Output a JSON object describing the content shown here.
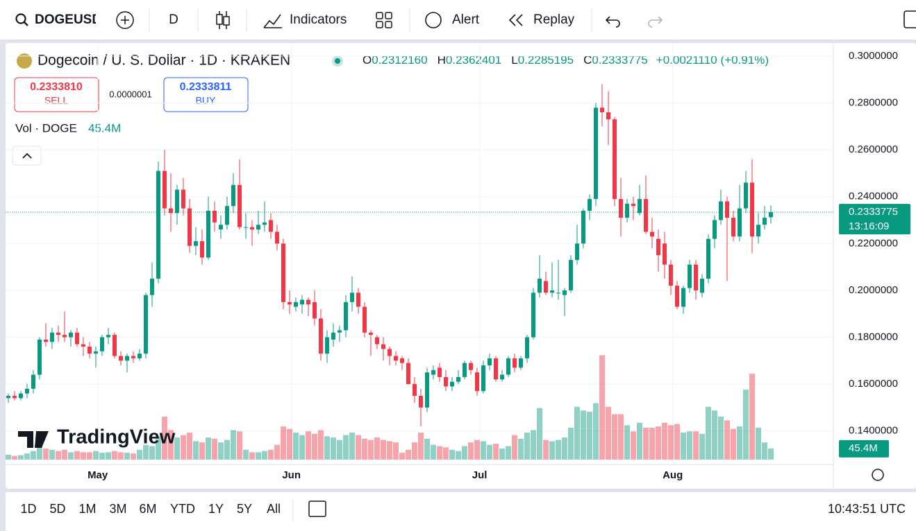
{
  "toolbar": {
    "symbol": "DOGEUSD",
    "interval": "D",
    "indicators": "Indicators",
    "alert": "Alert",
    "replay": "Replay"
  },
  "chart_data": {
    "type": "candlestick",
    "title": "Dogecoin / U. S. Dollar · 1D · KRAKEN",
    "legend": [
      {
        "key": "O",
        "value": 0.231216,
        "label": "0.2312160"
      },
      {
        "key": "H",
        "value": 0.2362401,
        "label": "0.2362401"
      },
      {
        "key": "L",
        "value": 0.2285195,
        "label": "0.2285195"
      },
      {
        "key": "C",
        "value": 0.2333775,
        "label": "0.2333775"
      }
    ],
    "change": {
      "value": 0.002111,
      "label": "+0.0021110"
    },
    "change_pct": {
      "value": 0.91,
      "label": "(+0.91%)"
    },
    "sell": {
      "value": 0.233381,
      "label": "0.2333810",
      "text": "SELL"
    },
    "spread": {
      "value": 1e-07,
      "label": "0.0000001"
    },
    "buy": {
      "value": 0.2333811,
      "label": "0.2333811",
      "text": "BUY"
    },
    "volume_legend": {
      "name": "Vol · DOGE",
      "value": 45.4,
      "label": "45.4M"
    },
    "last_price": {
      "value": 0.2333775,
      "label": "0.2333775",
      "countdown": "13:16:09"
    },
    "up_color": "#089981",
    "down_color": "#f23645",
    "ylim": [
      0.1257,
      0.3056
    ],
    "yticks": [
      {
        "value": 0.14,
        "label": "0.1400000"
      },
      {
        "value": 0.16,
        "label": "0.1600000"
      },
      {
        "value": 0.18,
        "label": "0.1800000"
      },
      {
        "value": 0.2,
        "label": "0.2000000"
      },
      {
        "value": 0.22,
        "label": "0.2200000"
      },
      {
        "value": 0.24,
        "label": "0.2400000"
      },
      {
        "value": 0.26,
        "label": "0.2600000"
      },
      {
        "value": 0.28,
        "label": "0.2800000"
      },
      {
        "value": 0.3,
        "label": "0.3000000"
      }
    ],
    "xlim": [
      -0.44,
      132
    ],
    "xticks": [
      {
        "value": 14.3,
        "label": "May"
      },
      {
        "value": 45.3,
        "label": "Jun"
      },
      {
        "value": 75.4,
        "label": "Jul"
      },
      {
        "value": 106.3,
        "label": "Aug"
      }
    ],
    "volume_lim": [
      0,
      480
    ],
    "candles": [
      [
        0.154,
        0.156,
        0.152,
        0.155
      ],
      [
        0.155,
        0.157,
        0.153,
        0.154
      ],
      [
        0.154,
        0.157,
        0.153,
        0.156
      ],
      [
        0.156,
        0.16,
        0.154,
        0.158
      ],
      [
        0.158,
        0.166,
        0.156,
        0.164
      ],
      [
        0.164,
        0.18,
        0.162,
        0.179
      ],
      [
        0.179,
        0.186,
        0.176,
        0.178
      ],
      [
        0.178,
        0.184,
        0.175,
        0.182
      ],
      [
        0.182,
        0.185,
        0.178,
        0.181
      ],
      [
        0.181,
        0.191,
        0.178,
        0.18
      ],
      [
        0.18,
        0.183,
        0.176,
        0.182
      ],
      [
        0.182,
        0.184,
        0.176,
        0.177
      ],
      [
        0.177,
        0.18,
        0.172,
        0.176
      ],
      [
        0.176,
        0.178,
        0.171,
        0.173
      ],
      [
        0.173,
        0.176,
        0.167,
        0.174
      ],
      [
        0.174,
        0.181,
        0.172,
        0.18
      ],
      [
        0.18,
        0.184,
        0.177,
        0.181
      ],
      [
        0.181,
        0.182,
        0.171,
        0.172
      ],
      [
        0.172,
        0.174,
        0.168,
        0.17
      ],
      [
        0.17,
        0.173,
        0.165,
        0.172
      ],
      [
        0.172,
        0.174,
        0.169,
        0.171
      ],
      [
        0.171,
        0.175,
        0.17,
        0.173
      ],
      [
        0.173,
        0.199,
        0.171,
        0.198
      ],
      [
        0.198,
        0.212,
        0.193,
        0.205
      ],
      [
        0.205,
        0.255,
        0.203,
        0.251
      ],
      [
        0.251,
        0.26,
        0.232,
        0.235
      ],
      [
        0.235,
        0.25,
        0.225,
        0.233
      ],
      [
        0.233,
        0.245,
        0.228,
        0.243
      ],
      [
        0.243,
        0.248,
        0.232,
        0.235
      ],
      [
        0.235,
        0.239,
        0.216,
        0.219
      ],
      [
        0.219,
        0.227,
        0.215,
        0.221
      ],
      [
        0.221,
        0.226,
        0.211,
        0.214
      ],
      [
        0.214,
        0.24,
        0.213,
        0.234
      ],
      [
        0.234,
        0.238,
        0.225,
        0.229
      ],
      [
        0.226,
        0.232,
        0.222,
        0.228
      ],
      [
        0.228,
        0.24,
        0.226,
        0.236
      ],
      [
        0.236,
        0.25,
        0.233,
        0.245
      ],
      [
        0.245,
        0.256,
        0.226,
        0.227
      ],
      [
        0.227,
        0.233,
        0.222,
        0.227
      ],
      [
        0.227,
        0.23,
        0.219,
        0.226
      ],
      [
        0.226,
        0.234,
        0.224,
        0.228
      ],
      [
        0.228,
        0.238,
        0.225,
        0.229
      ],
      [
        0.23,
        0.233,
        0.222,
        0.225
      ],
      [
        0.225,
        0.228,
        0.217,
        0.22
      ],
      [
        0.22,
        0.222,
        0.192,
        0.195
      ],
      [
        0.195,
        0.2,
        0.19,
        0.194
      ],
      [
        0.193,
        0.197,
        0.191,
        0.195
      ],
      [
        0.194,
        0.198,
        0.19,
        0.196
      ],
      [
        0.196,
        0.197,
        0.189,
        0.194
      ],
      [
        0.195,
        0.2,
        0.185,
        0.188
      ],
      [
        0.188,
        0.192,
        0.17,
        0.173
      ],
      [
        0.173,
        0.183,
        0.169,
        0.18
      ],
      [
        0.179,
        0.186,
        0.176,
        0.182
      ],
      [
        0.182,
        0.185,
        0.178,
        0.183
      ],
      [
        0.183,
        0.198,
        0.18,
        0.195
      ],
      [
        0.195,
        0.206,
        0.191,
        0.199
      ],
      [
        0.199,
        0.201,
        0.19,
        0.193
      ],
      [
        0.193,
        0.195,
        0.18,
        0.182
      ],
      [
        0.182,
        0.183,
        0.172,
        0.181
      ],
      [
        0.18,
        0.181,
        0.175,
        0.177
      ],
      [
        0.177,
        0.18,
        0.17,
        0.175
      ],
      [
        0.175,
        0.176,
        0.168,
        0.172
      ],
      [
        0.172,
        0.174,
        0.168,
        0.17
      ],
      [
        0.171,
        0.172,
        0.166,
        0.169
      ],
      [
        0.169,
        0.171,
        0.16,
        0.16
      ],
      [
        0.16,
        0.163,
        0.152,
        0.155
      ],
      [
        0.155,
        0.158,
        0.142,
        0.15
      ],
      [
        0.15,
        0.167,
        0.148,
        0.165
      ],
      [
        0.164,
        0.168,
        0.162,
        0.166
      ],
      [
        0.167,
        0.169,
        0.161,
        0.163
      ],
      [
        0.163,
        0.166,
        0.157,
        0.159
      ],
      [
        0.159,
        0.163,
        0.157,
        0.161
      ],
      [
        0.161,
        0.166,
        0.16,
        0.163
      ],
      [
        0.163,
        0.17,
        0.162,
        0.169
      ],
      [
        0.169,
        0.17,
        0.164,
        0.166
      ],
      [
        0.165,
        0.167,
        0.155,
        0.157
      ],
      [
        0.157,
        0.17,
        0.156,
        0.168
      ],
      [
        0.168,
        0.173,
        0.166,
        0.171
      ],
      [
        0.171,
        0.172,
        0.161,
        0.162
      ],
      [
        0.162,
        0.166,
        0.161,
        0.164
      ],
      [
        0.164,
        0.172,
        0.163,
        0.171
      ],
      [
        0.171,
        0.173,
        0.165,
        0.167
      ],
      [
        0.167,
        0.172,
        0.166,
        0.171
      ],
      [
        0.171,
        0.181,
        0.169,
        0.18
      ],
      [
        0.18,
        0.201,
        0.179,
        0.199
      ],
      [
        0.199,
        0.215,
        0.197,
        0.205
      ],
      [
        0.204,
        0.208,
        0.198,
        0.199
      ],
      [
        0.199,
        0.212,
        0.197,
        0.2
      ],
      [
        0.199,
        0.213,
        0.196,
        0.199
      ],
      [
        0.198,
        0.201,
        0.189,
        0.2
      ],
      [
        0.2,
        0.215,
        0.199,
        0.213
      ],
      [
        0.213,
        0.228,
        0.211,
        0.22
      ],
      [
        0.22,
        0.235,
        0.218,
        0.234
      ],
      [
        0.234,
        0.241,
        0.23,
        0.239
      ],
      [
        0.239,
        0.28,
        0.236,
        0.278
      ],
      [
        0.278,
        0.288,
        0.27,
        0.276
      ],
      [
        0.276,
        0.285,
        0.262,
        0.273
      ],
      [
        0.273,
        0.274,
        0.236,
        0.239
      ],
      [
        0.239,
        0.248,
        0.223,
        0.231
      ],
      [
        0.231,
        0.239,
        0.229,
        0.237
      ],
      [
        0.237,
        0.24,
        0.23,
        0.236
      ],
      [
        0.233,
        0.245,
        0.232,
        0.239
      ],
      [
        0.239,
        0.249,
        0.224,
        0.225
      ],
      [
        0.225,
        0.231,
        0.218,
        0.223
      ],
      [
        0.222,
        0.226,
        0.208,
        0.215
      ],
      [
        0.22,
        0.225,
        0.205,
        0.211
      ],
      [
        0.211,
        0.213,
        0.198,
        0.202
      ],
      [
        0.202,
        0.204,
        0.192,
        0.193
      ],
      [
        0.193,
        0.202,
        0.19,
        0.201
      ],
      [
        0.201,
        0.213,
        0.199,
        0.211
      ],
      [
        0.211,
        0.213,
        0.196,
        0.2
      ],
      [
        0.199,
        0.207,
        0.197,
        0.205
      ],
      [
        0.205,
        0.224,
        0.203,
        0.222
      ],
      [
        0.222,
        0.232,
        0.218,
        0.23
      ],
      [
        0.23,
        0.243,
        0.228,
        0.238
      ],
      [
        0.238,
        0.24,
        0.204,
        0.231
      ],
      [
        0.231,
        0.234,
        0.221,
        0.223
      ],
      [
        0.223,
        0.245,
        0.221,
        0.235
      ],
      [
        0.235,
        0.251,
        0.233,
        0.246
      ],
      [
        0.246,
        0.256,
        0.216,
        0.223
      ],
      [
        0.223,
        0.233,
        0.22,
        0.228
      ],
      [
        0.228,
        0.236,
        0.226,
        0.231
      ],
      [
        0.231216,
        0.2362401,
        0.2285195,
        0.2333775
      ]
    ],
    "volume": [
      20,
      15,
      18,
      25,
      35,
      55,
      45,
      40,
      35,
      40,
      30,
      35,
      30,
      30,
      35,
      28,
      30,
      35,
      30,
      28,
      25,
      40,
      60,
      55,
      95,
      175,
      120,
      90,
      100,
      110,
      75,
      70,
      90,
      85,
      70,
      80,
      120,
      115,
      40,
      30,
      30,
      35,
      40,
      60,
      135,
      125,
      110,
      100,
      115,
      105,
      120,
      95,
      90,
      80,
      100,
      110,
      100,
      85,
      80,
      90,
      80,
      75,
      70,
      28,
      40,
      70,
      110,
      85,
      60,
      55,
      50,
      40,
      35,
      55,
      70,
      80,
      75,
      60,
      65,
      45,
      55,
      100,
      85,
      110,
      120,
      210,
      80,
      75,
      80,
      90,
      130,
      215,
      200,
      195,
      230,
      425,
      215,
      185,
      185,
      140,
      115,
      150,
      130,
      130,
      135,
      150,
      140,
      145,
      110,
      115,
      115,
      105,
      215,
      200,
      175,
      160,
      125,
      135,
      285,
      350,
      130,
      70,
      45.4
    ],
    "watermark": "TradingView"
  },
  "range_buttons": [
    "1D",
    "5D",
    "1M",
    "3M",
    "6M",
    "YTD",
    "1Y",
    "5Y",
    "All"
  ],
  "clock": "10:43:51 UTC"
}
